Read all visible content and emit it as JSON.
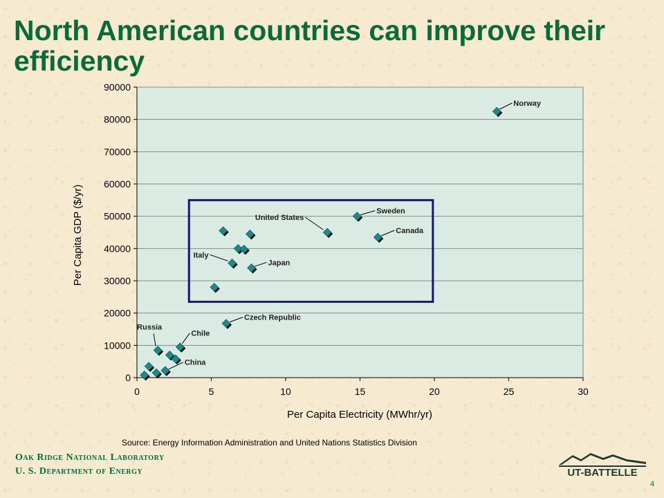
{
  "slide": {
    "title": "North American countries can improve their efficiency",
    "source": "Source: Energy Information Administration and United Nations Statistics Division",
    "org_line1": "Oak Ridge National Laboratory",
    "org_line2": "U. S. Department of Energy",
    "logo_text": "UT-BATTELLE",
    "page_number": "4"
  },
  "chart_data": {
    "type": "scatter",
    "xlabel": "Per Capita Electricity (MWhr/yr)",
    "ylabel": "Per Capita GDP  ($/yr)",
    "xlim": [
      0,
      30
    ],
    "ylim": [
      0,
      90000
    ],
    "x_ticks": [
      0,
      5,
      10,
      15,
      20,
      25,
      30
    ],
    "y_ticks": [
      0,
      10000,
      20000,
      30000,
      40000,
      50000,
      60000,
      70000,
      80000,
      90000
    ],
    "grid": "horizontal",
    "marker_color": "#1a8a8a",
    "highlight_box": {
      "x": [
        3.5,
        19.9
      ],
      "y": [
        23500,
        55000
      ],
      "color": "#101870"
    },
    "points": [
      {
        "x": 24.2,
        "y": 82500,
        "label": "Norway"
      },
      {
        "x": 14.8,
        "y": 50000,
        "label": "Sweden"
      },
      {
        "x": 12.8,
        "y": 45000,
        "label": "United States"
      },
      {
        "x": 16.2,
        "y": 43500,
        "label": "Canada"
      },
      {
        "x": 7.7,
        "y": 34000,
        "label": "Japan"
      },
      {
        "x": 6.4,
        "y": 35500,
        "label": "Italy"
      },
      {
        "x": 6.0,
        "y": 16800,
        "label": "Czech Republic"
      },
      {
        "x": 1.4,
        "y": 8500,
        "label": "Russia"
      },
      {
        "x": 2.9,
        "y": 9500,
        "label": "Chile"
      },
      {
        "x": 1.9,
        "y": 2200,
        "label": "China"
      },
      {
        "x": 5.8,
        "y": 45500,
        "label": ""
      },
      {
        "x": 7.6,
        "y": 44500,
        "label": ""
      },
      {
        "x": 6.8,
        "y": 40000,
        "label": ""
      },
      {
        "x": 7.2,
        "y": 39800,
        "label": ""
      },
      {
        "x": 5.2,
        "y": 28000,
        "label": ""
      },
      {
        "x": 2.2,
        "y": 7000,
        "label": ""
      },
      {
        "x": 2.6,
        "y": 5800,
        "label": ""
      },
      {
        "x": 0.8,
        "y": 3500,
        "label": ""
      },
      {
        "x": 1.3,
        "y": 1500,
        "label": ""
      },
      {
        "x": 0.5,
        "y": 800,
        "label": ""
      }
    ]
  }
}
